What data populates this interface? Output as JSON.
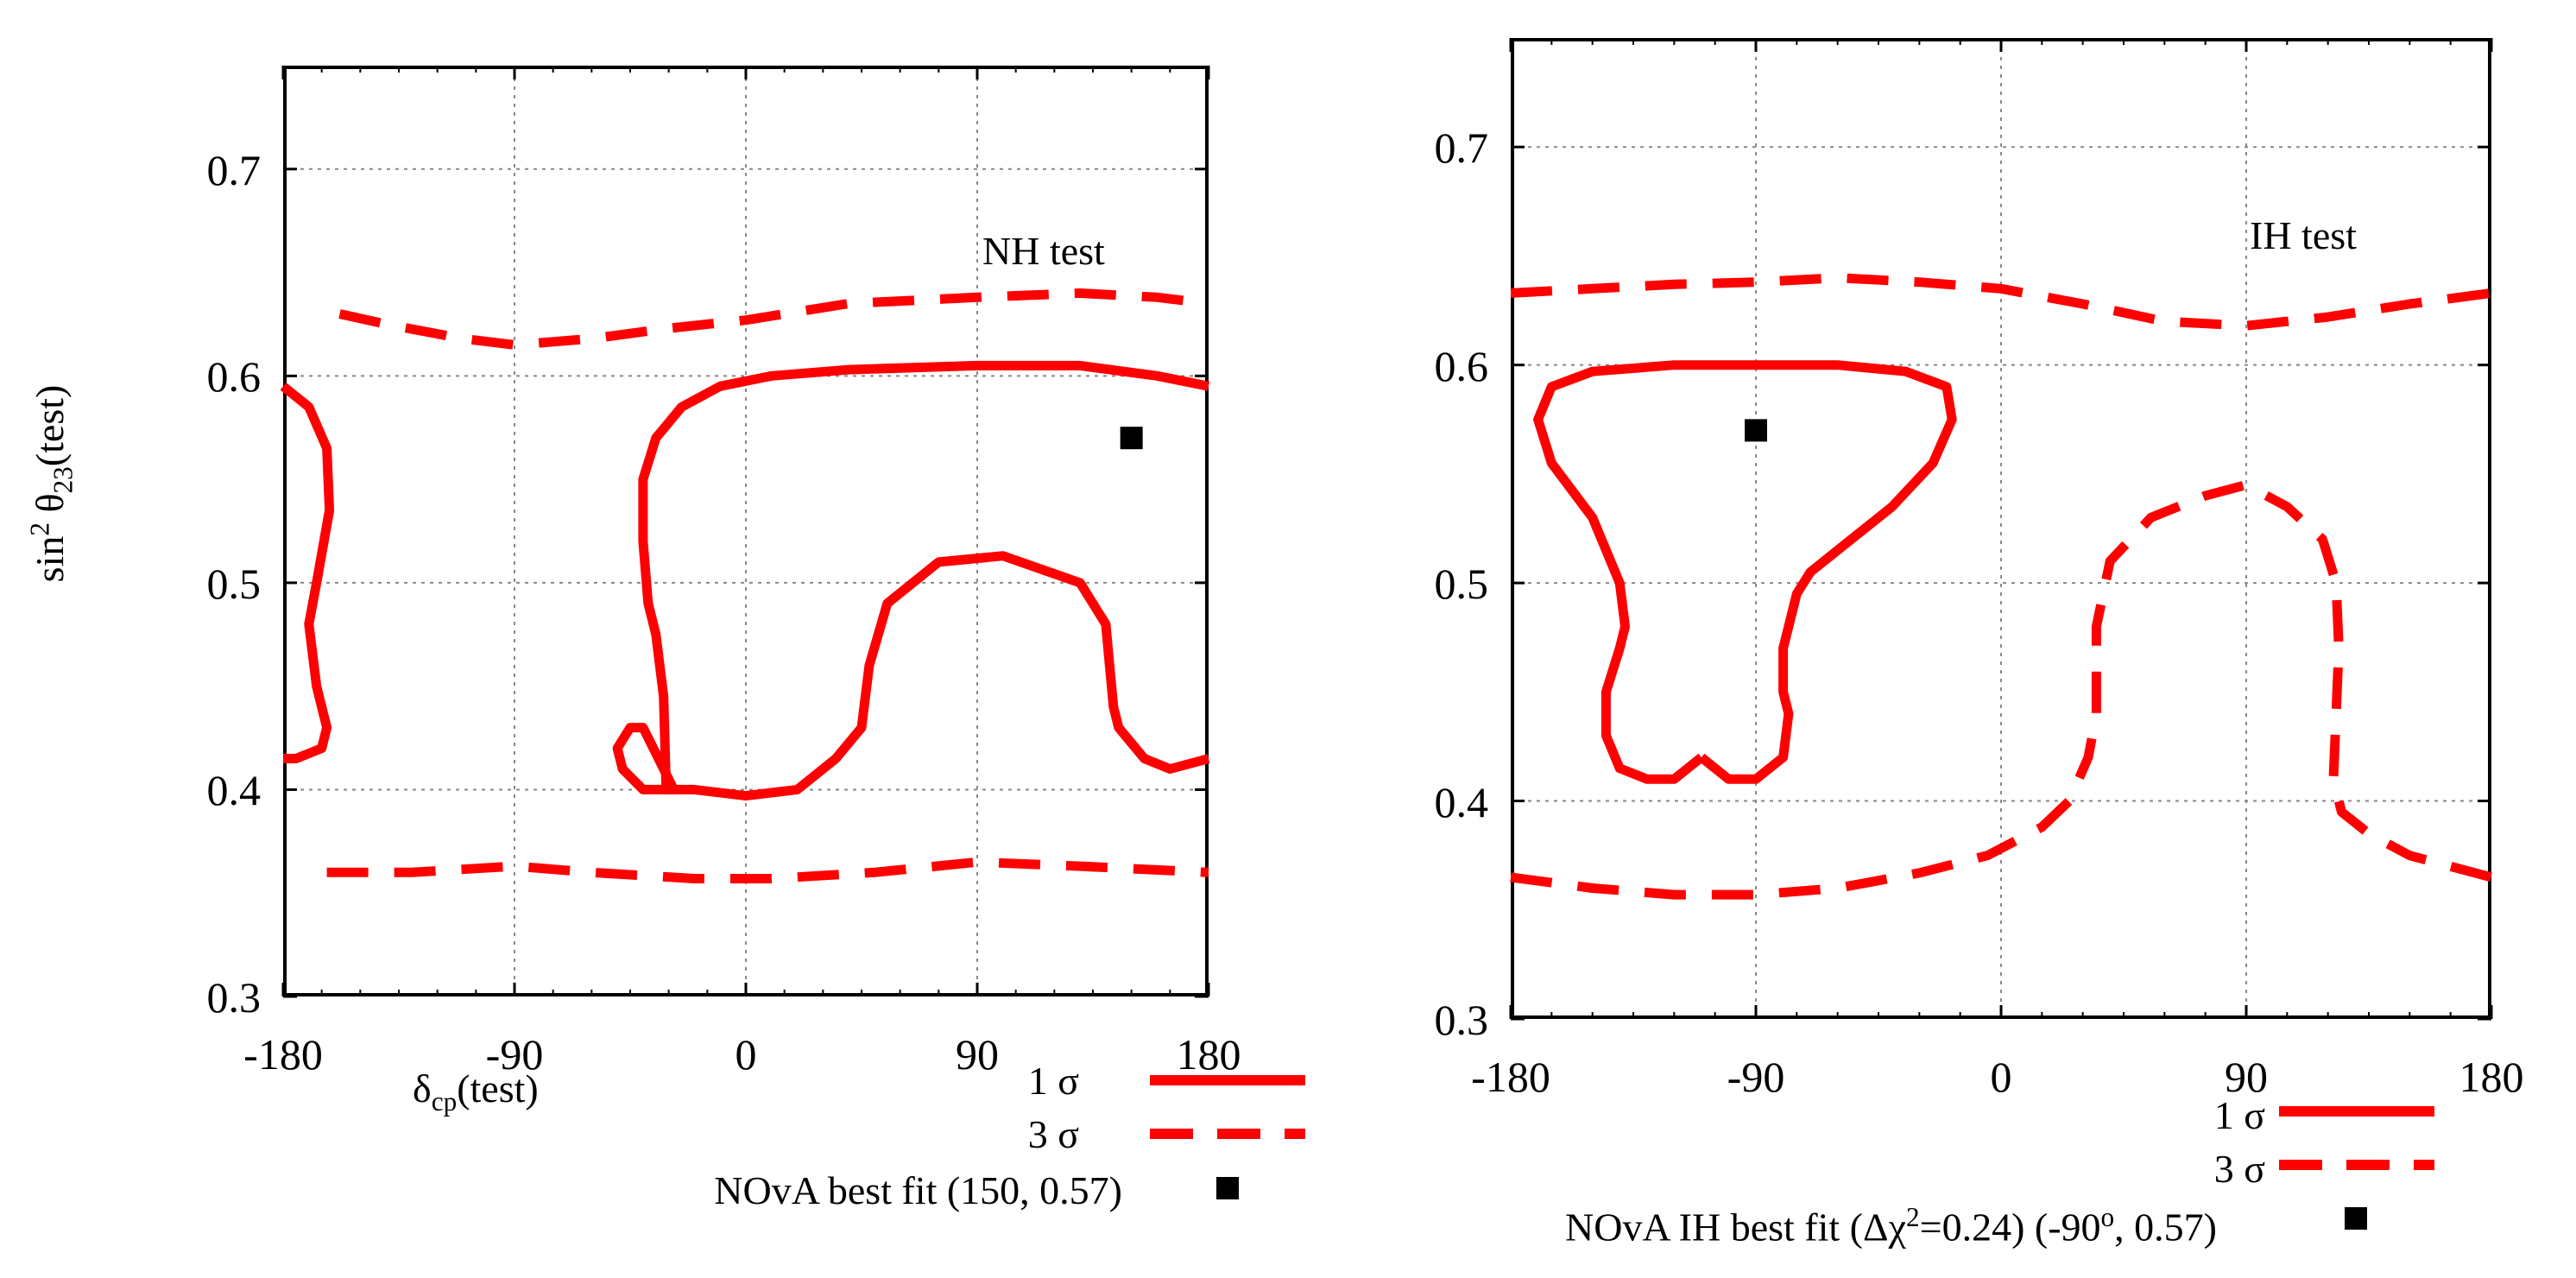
{
  "chart_data": [
    {
      "type": "line",
      "title": "NH test",
      "xlabel": "δcp(test)",
      "ylabel": "sin² θ23(test)",
      "xlim": [
        -180,
        180
      ],
      "ylim": [
        0.3,
        0.75
      ],
      "x_ticks": [
        "-180",
        "-90",
        "0",
        "90",
        "180"
      ],
      "y_ticks": [
        "0.3",
        "0.4",
        "0.5",
        "0.6",
        "0.7"
      ],
      "grid": true,
      "series": [
        {
          "name": "1 σ",
          "style": "solid",
          "color": "#ff0000",
          "segments": [
            [
              [
                -180,
                0.595
              ],
              [
                -170,
                0.585
              ],
              [
                -163,
                0.565
              ],
              [
                -162,
                0.535
              ],
              [
                -167,
                0.5
              ],
              [
                -170,
                0.48
              ],
              [
                -167,
                0.45
              ],
              [
                -163,
                0.43
              ],
              [
                -165,
                0.42
              ],
              [
                -175,
                0.415
              ],
              [
                -180,
                0.415
              ]
            ],
            [
              [
                -28,
                0.4
              ],
              [
                -31,
                0.4
              ],
              [
                -32,
                0.445
              ],
              [
                -35,
                0.475
              ],
              [
                -38,
                0.49
              ],
              [
                -40,
                0.52
              ],
              [
                -40,
                0.55
              ],
              [
                -35,
                0.57
              ],
              [
                -25,
                0.585
              ],
              [
                -10,
                0.595
              ],
              [
                10,
                0.6
              ],
              [
                40,
                0.603
              ],
              [
                90,
                0.605
              ],
              [
                130,
                0.605
              ],
              [
                160,
                0.6
              ],
              [
                180,
                0.595
              ]
            ],
            [
              [
                -28,
                0.4
              ],
              [
                -40,
                0.43
              ],
              [
                -45,
                0.43
              ],
              [
                -50,
                0.42
              ],
              [
                -48,
                0.41
              ],
              [
                -40,
                0.4
              ],
              [
                -20,
                0.4
              ],
              [
                0,
                0.397
              ],
              [
                20,
                0.4
              ],
              [
                35,
                0.415
              ],
              [
                45,
                0.43
              ],
              [
                48,
                0.46
              ],
              [
                55,
                0.49
              ],
              [
                75,
                0.51
              ],
              [
                100,
                0.513
              ],
              [
                130,
                0.5
              ],
              [
                140,
                0.48
              ],
              [
                143,
                0.44
              ],
              [
                145,
                0.43
              ],
              [
                155,
                0.415
              ],
              [
                165,
                0.41
              ],
              [
                180,
                0.415
              ]
            ]
          ]
        },
        {
          "name": "3 σ",
          "style": "dashed",
          "color": "#ff0000",
          "segments": [
            [
              [
                -158,
                0.63
              ],
              [
                -140,
                0.625
              ],
              [
                -110,
                0.618
              ],
              [
                -90,
                0.615
              ],
              [
                -60,
                0.618
              ],
              [
                -30,
                0.623
              ],
              [
                0,
                0.627
              ],
              [
                40,
                0.635
              ],
              [
                90,
                0.638
              ],
              [
                130,
                0.64
              ],
              [
                160,
                0.638
              ],
              [
                180,
                0.635
              ]
            ],
            [
              [
                -163,
                0.36
              ],
              [
                -130,
                0.36
              ],
              [
                -90,
                0.363
              ],
              [
                -60,
                0.36
              ],
              [
                -20,
                0.357
              ],
              [
                10,
                0.357
              ],
              [
                50,
                0.36
              ],
              [
                90,
                0.365
              ],
              [
                130,
                0.363
              ],
              [
                180,
                0.36
              ]
            ]
          ]
        }
      ],
      "best_fit": {
        "label": "NOvA best fit (150, 0.57)",
        "x": 150,
        "y": 0.57
      },
      "legend": [
        "1 σ",
        "3 σ",
        "NOvA best fit (150, 0.57)"
      ]
    },
    {
      "type": "line",
      "title": "IH test",
      "xlabel": "",
      "ylabel": "",
      "xlim": [
        -180,
        180
      ],
      "ylim": [
        0.3,
        0.75
      ],
      "x_ticks": [
        "-180",
        "-90",
        "0",
        "90",
        "180"
      ],
      "y_ticks": [
        "0.3",
        "0.4",
        "0.5",
        "0.6",
        "0.7"
      ],
      "grid": true,
      "series": [
        {
          "name": "1 σ",
          "style": "solid",
          "color": "#ff0000",
          "segments": [
            [
              [
                -110,
                0.42
              ],
              [
                -120,
                0.41
              ],
              [
                -130,
                0.41
              ],
              [
                -140,
                0.415
              ],
              [
                -145,
                0.43
              ],
              [
                -145,
                0.45
              ],
              [
                -140,
                0.47
              ],
              [
                -138,
                0.48
              ],
              [
                -140,
                0.5
              ],
              [
                -150,
                0.53
              ],
              [
                -165,
                0.555
              ],
              [
                -170,
                0.575
              ],
              [
                -165,
                0.59
              ],
              [
                -150,
                0.597
              ],
              [
                -120,
                0.6
              ],
              [
                -90,
                0.6
              ],
              [
                -60,
                0.6
              ],
              [
                -35,
                0.597
              ],
              [
                -20,
                0.59
              ],
              [
                -18,
                0.575
              ],
              [
                -25,
                0.555
              ],
              [
                -40,
                0.535
              ],
              [
                -60,
                0.515
              ],
              [
                -70,
                0.505
              ],
              [
                -75,
                0.495
              ],
              [
                -80,
                0.47
              ],
              [
                -80,
                0.45
              ],
              [
                -78,
                0.44
              ],
              [
                -80,
                0.42
              ],
              [
                -85,
                0.415
              ],
              [
                -90,
                0.41
              ],
              [
                -100,
                0.41
              ],
              [
                -110,
                0.42
              ]
            ]
          ]
        },
        {
          "name": "3 σ",
          "style": "dashed",
          "color": "#ff0000",
          "segments": [
            [
              [
                -180,
                0.365
              ],
              [
                -150,
                0.36
              ],
              [
                -120,
                0.357
              ],
              [
                -90,
                0.357
              ],
              [
                -60,
                0.36
              ],
              [
                -30,
                0.367
              ],
              [
                -5,
                0.375
              ],
              [
                15,
                0.388
              ],
              [
                25,
                0.4
              ],
              [
                32,
                0.42
              ],
              [
                35,
                0.44
              ],
              [
                35,
                0.48
              ],
              [
                40,
                0.51
              ],
              [
                55,
                0.53
              ],
              [
                75,
                0.54
              ],
              [
                90,
                0.545
              ],
              [
                105,
                0.535
              ],
              [
                118,
                0.52
              ],
              [
                123,
                0.5
              ],
              [
                124,
                0.47
              ],
              [
                123,
                0.44
              ],
              [
                122,
                0.41
              ],
              [
                125,
                0.395
              ],
              [
                135,
                0.385
              ],
              [
                150,
                0.375
              ],
              [
                165,
                0.37
              ],
              [
                180,
                0.365
              ]
            ],
            [
              [
                -180,
                0.633
              ],
              [
                -150,
                0.635
              ],
              [
                -120,
                0.637
              ],
              [
                -90,
                0.638
              ],
              [
                -60,
                0.64
              ],
              [
                -30,
                0.638
              ],
              [
                0,
                0.635
              ],
              [
                30,
                0.628
              ],
              [
                60,
                0.62
              ],
              [
                90,
                0.618
              ],
              [
                120,
                0.622
              ],
              [
                150,
                0.628
              ],
              [
                180,
                0.633
              ]
            ]
          ]
        }
      ],
      "best_fit": {
        "label": "NOvA IH best fit (Δχ²=0.24) (-90°, 0.57)",
        "x": -90,
        "y": 0.57
      },
      "legend": [
        "1 σ",
        "3 σ",
        "NOvA IH best fit (Δχ²=0.24) (-90°, 0.57)"
      ]
    }
  ],
  "panels": {
    "left": {
      "title": "NH test",
      "ylabel_main": "sin",
      "ylabel_sup": "2",
      "ylabel_theta": " θ",
      "ylabel_sub": "23",
      "ylabel_tail": "(test)",
      "xlabel_main": "δ",
      "xlabel_sub": "cp",
      "xlabel_tail": "(test)",
      "legend_1sigma": "1 σ",
      "legend_3sigma": "3 σ",
      "legend_bestfit": "NOvA best fit (150, 0.57)"
    },
    "right": {
      "title": "IH test",
      "legend_1sigma": "1 σ",
      "legend_3sigma": "3 σ",
      "legend_bestfit_pre": "NOvA IH best fit (Δχ",
      "legend_bestfit_sup": "2",
      "legend_bestfit_mid": "=0.24) (-90",
      "legend_bestfit_sup2": "o",
      "legend_bestfit_post": ", 0.57)"
    }
  },
  "colors": {
    "contour": "#ff0000",
    "marker": "#000000",
    "grid": "#888888"
  }
}
